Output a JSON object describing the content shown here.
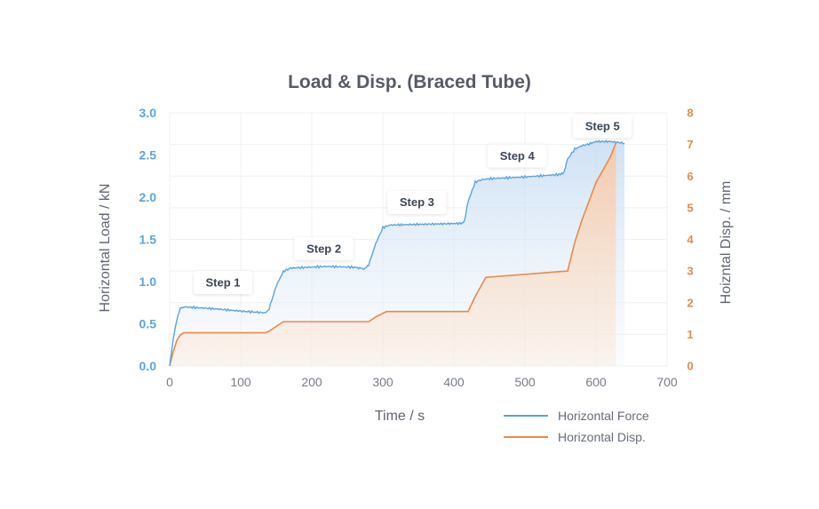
{
  "chart_data": {
    "type": "line",
    "title": "Load & Disp. (Braced Tube)",
    "xlabel": "Time / s",
    "ylabel_left": "Horizontal Load / kN",
    "ylabel_right": "Hoizntal Disp. / mm",
    "xlim": [
      0,
      700
    ],
    "ylim_left": [
      0,
      3.0
    ],
    "ylim_right": [
      0,
      8
    ],
    "x_ticks": [
      "0",
      "100",
      "200",
      "300",
      "400",
      "500",
      "600",
      "700"
    ],
    "left_ticks": [
      "0.0",
      "0.5",
      "1.0",
      "1.5",
      "2.0",
      "2.5",
      "3.0"
    ],
    "left_tick_values": [
      0,
      0.5,
      1.0,
      1.5,
      2.0,
      2.5,
      3.0
    ],
    "right_ticks": [
      "0",
      "1",
      "2",
      "3",
      "4",
      "5",
      "6",
      "7",
      "8"
    ],
    "grid": true,
    "series": [
      {
        "name": "Horizontal Force",
        "axis": "left",
        "color": "#5ba4dc",
        "x": [
          0,
          5,
          10,
          15,
          20,
          60,
          100,
          135,
          140,
          150,
          160,
          170,
          220,
          260,
          275,
          280,
          290,
          300,
          310,
          360,
          410,
          415,
          420,
          430,
          440,
          450,
          500,
          550,
          555,
          560,
          570,
          580,
          590,
          600,
          620,
          630,
          640
        ],
        "y": [
          0,
          0.32,
          0.55,
          0.68,
          0.7,
          0.68,
          0.65,
          0.63,
          0.68,
          0.95,
          1.12,
          1.16,
          1.18,
          1.17,
          1.15,
          1.2,
          1.45,
          1.64,
          1.67,
          1.68,
          1.69,
          1.72,
          1.95,
          2.18,
          2.21,
          2.22,
          2.24,
          2.27,
          2.3,
          2.45,
          2.57,
          2.61,
          2.63,
          2.66,
          2.66,
          2.65,
          2.64
        ]
      },
      {
        "name": "Horizontal Disp.",
        "axis": "right",
        "color": "#e58a4c",
        "x": [
          0,
          5,
          10,
          15,
          20,
          135,
          140,
          160,
          280,
          290,
          305,
          420,
          430,
          445,
          560,
          570,
          580,
          590,
          600,
          620,
          628
        ],
        "y": [
          0,
          0.45,
          0.8,
          0.98,
          1.05,
          1.05,
          1.1,
          1.4,
          1.4,
          1.55,
          1.72,
          1.72,
          2.2,
          2.8,
          3.0,
          3.9,
          4.6,
          5.2,
          5.8,
          6.6,
          7.05
        ]
      }
    ],
    "annotations": [
      {
        "text": "Step 1",
        "x": 75,
        "y": 0.99
      },
      {
        "text": "Step 2",
        "x": 217,
        "y": 1.39
      },
      {
        "text": "Step 3",
        "x": 348,
        "y": 1.94
      },
      {
        "text": "Step 4",
        "x": 489,
        "y": 2.49
      },
      {
        "text": "Step 5",
        "x": 609,
        "y": 2.84
      }
    ],
    "legend": "bottom-right"
  }
}
